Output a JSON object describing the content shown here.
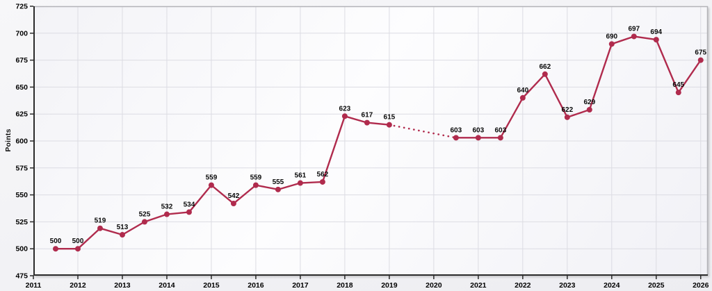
{
  "chart_data": {
    "type": "line",
    "title": "",
    "ylabel": "Points",
    "xlim": [
      2011,
      2026.16
    ],
    "ylim": [
      475,
      725
    ],
    "x_ticks": [
      2011,
      2012,
      2013,
      2014,
      2015,
      2016,
      2017,
      2018,
      2019,
      2020,
      2021,
      2022,
      2023,
      2024,
      2025,
      2026
    ],
    "y_ticks": [
      475,
      500,
      525,
      550,
      575,
      600,
      625,
      650,
      675,
      700,
      725
    ],
    "grid": true,
    "legend": "none",
    "points": [
      {
        "x": 2011.5,
        "v": 500
      },
      {
        "x": 2012.0,
        "v": 500
      },
      {
        "x": 2012.5,
        "v": 519
      },
      {
        "x": 2013.0,
        "v": 513
      },
      {
        "x": 2013.5,
        "v": 525
      },
      {
        "x": 2014.0,
        "v": 532
      },
      {
        "x": 2014.5,
        "v": 534
      },
      {
        "x": 2015.0,
        "v": 559
      },
      {
        "x": 2015.5,
        "v": 542
      },
      {
        "x": 2016.0,
        "v": 559
      },
      {
        "x": 2016.5,
        "v": 555
      },
      {
        "x": 2017.0,
        "v": 561
      },
      {
        "x": 2017.5,
        "v": 562
      },
      {
        "x": 2018.0,
        "v": 623
      },
      {
        "x": 2018.5,
        "v": 617
      },
      {
        "x": 2019.0,
        "v": 615
      },
      {
        "x": 2020.5,
        "v": 603
      },
      {
        "x": 2021.0,
        "v": 603
      },
      {
        "x": 2021.5,
        "v": 603
      },
      {
        "x": 2022.0,
        "v": 640
      },
      {
        "x": 2022.5,
        "v": 662
      },
      {
        "x": 2023.0,
        "v": 622
      },
      {
        "x": 2023.5,
        "v": 629
      },
      {
        "x": 2024.0,
        "v": 690
      },
      {
        "x": 2024.5,
        "v": 697
      },
      {
        "x": 2025.0,
        "v": 694
      },
      {
        "x": 2025.5,
        "v": 645
      },
      {
        "x": 2026.0,
        "v": 675
      }
    ],
    "dotted_segment_between_x": [
      2019.0,
      2020.5
    ],
    "colors": {
      "line": "#b02b4d",
      "marker": "#b02b4d",
      "grid": "#dcdce3",
      "axis": "#2b2b2b",
      "border": "#b3b3b8",
      "tick_label": "#000000",
      "data_label": "#0a0a0a"
    }
  }
}
